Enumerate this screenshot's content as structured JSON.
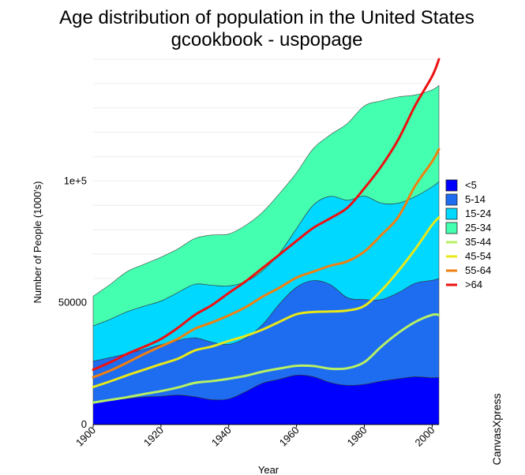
{
  "chart_data": {
    "type": "area",
    "title": "Age distribution of population in the United States",
    "subtitle": "gcookbook - uspopage",
    "xlabel": "Year",
    "ylabel": "Number of People (1000's)",
    "x_ticks": [
      "1900",
      "1920",
      "1940",
      "1960",
      "1980",
      "2000"
    ],
    "y_ticks": [
      "0",
      "50000",
      "1e+5"
    ],
    "xlim": [
      1900,
      2002
    ],
    "ylim": [
      0,
      150000
    ],
    "x": [
      1900,
      1905,
      1910,
      1915,
      1920,
      1925,
      1930,
      1935,
      1940,
      1945,
      1950,
      1955,
      1960,
      1965,
      1970,
      1975,
      1980,
      1985,
      1990,
      1995,
      2000,
      2002
    ],
    "area_series": [
      {
        "name": "<5",
        "color": "#0000ff",
        "values": [
          9200,
          10000,
          10600,
          11300,
          11600,
          12100,
          11400,
          10200,
          10500,
          13500,
          17000,
          18600,
          20300,
          19600,
          17200,
          16100,
          16500,
          17800,
          18800,
          19600,
          19200,
          19300
        ]
      },
      {
        "name": "5-14",
        "color": "#1e6cf0",
        "values": [
          16800,
          17500,
          18500,
          19500,
          21200,
          22400,
          24200,
          23600,
          22400,
          22000,
          24100,
          31000,
          36100,
          39500,
          40200,
          36000,
          34800,
          33500,
          35300,
          38400,
          40000,
          40600
        ]
      },
      {
        "name": "15-24",
        "color": "#00d8ff",
        "values": [
          14500,
          15700,
          17200,
          17800,
          17900,
          19700,
          22000,
          23400,
          24000,
          23200,
          22100,
          20800,
          24100,
          31100,
          36300,
          40000,
          42500,
          39600,
          36800,
          35600,
          38400,
          39800
        ]
      },
      {
        "name": "25-34",
        "color": "#44ffb0",
        "values": [
          12200,
          14300,
          16500,
          17200,
          18000,
          17900,
          18800,
          20600,
          21300,
          23100,
          24000,
          24500,
          22900,
          23200,
          25300,
          31500,
          37000,
          42000,
          43600,
          41700,
          39800,
          39500
        ]
      }
    ],
    "line_series": [
      {
        "name": "35-44",
        "color": "#b7f064",
        "values": [
          9000,
          10100,
          11200,
          12500,
          13700,
          15200,
          17100,
          17800,
          18800,
          20000,
          21700,
          23000,
          24100,
          24000,
          22900,
          23100,
          25600,
          32000,
          37600,
          42100,
          45000,
          45000
        ]
      },
      {
        "name": "45-54",
        "color": "#e8e818",
        "values": [
          15400,
          17700,
          20200,
          22500,
          24800,
          27000,
          30400,
          32000,
          34300,
          36400,
          39000,
          42200,
          45300,
          46200,
          46400,
          46800,
          48700,
          55000,
          63000,
          72000,
          82000,
          85000
        ]
      },
      {
        "name": "55-64",
        "color": "#f07f10",
        "values": [
          19400,
          22100,
          25400,
          28900,
          32100,
          35200,
          39300,
          41900,
          44800,
          48200,
          52500,
          56200,
          60300,
          62800,
          65200,
          67000,
          71000,
          77800,
          85200,
          98000,
          108000,
          113000
        ]
      },
      {
        "name": ">64",
        "color": "#ee1010",
        "values": [
          22500,
          25500,
          29000,
          31900,
          35100,
          39700,
          45000,
          49000,
          54000,
          58800,
          64300,
          69800,
          75400,
          80800,
          84700,
          89000,
          97000,
          106000,
          117000,
          131000,
          143000,
          150000
        ]
      }
    ],
    "legend": {
      "position": "right"
    },
    "grid": true
  },
  "watermark": "CanvasXpress"
}
